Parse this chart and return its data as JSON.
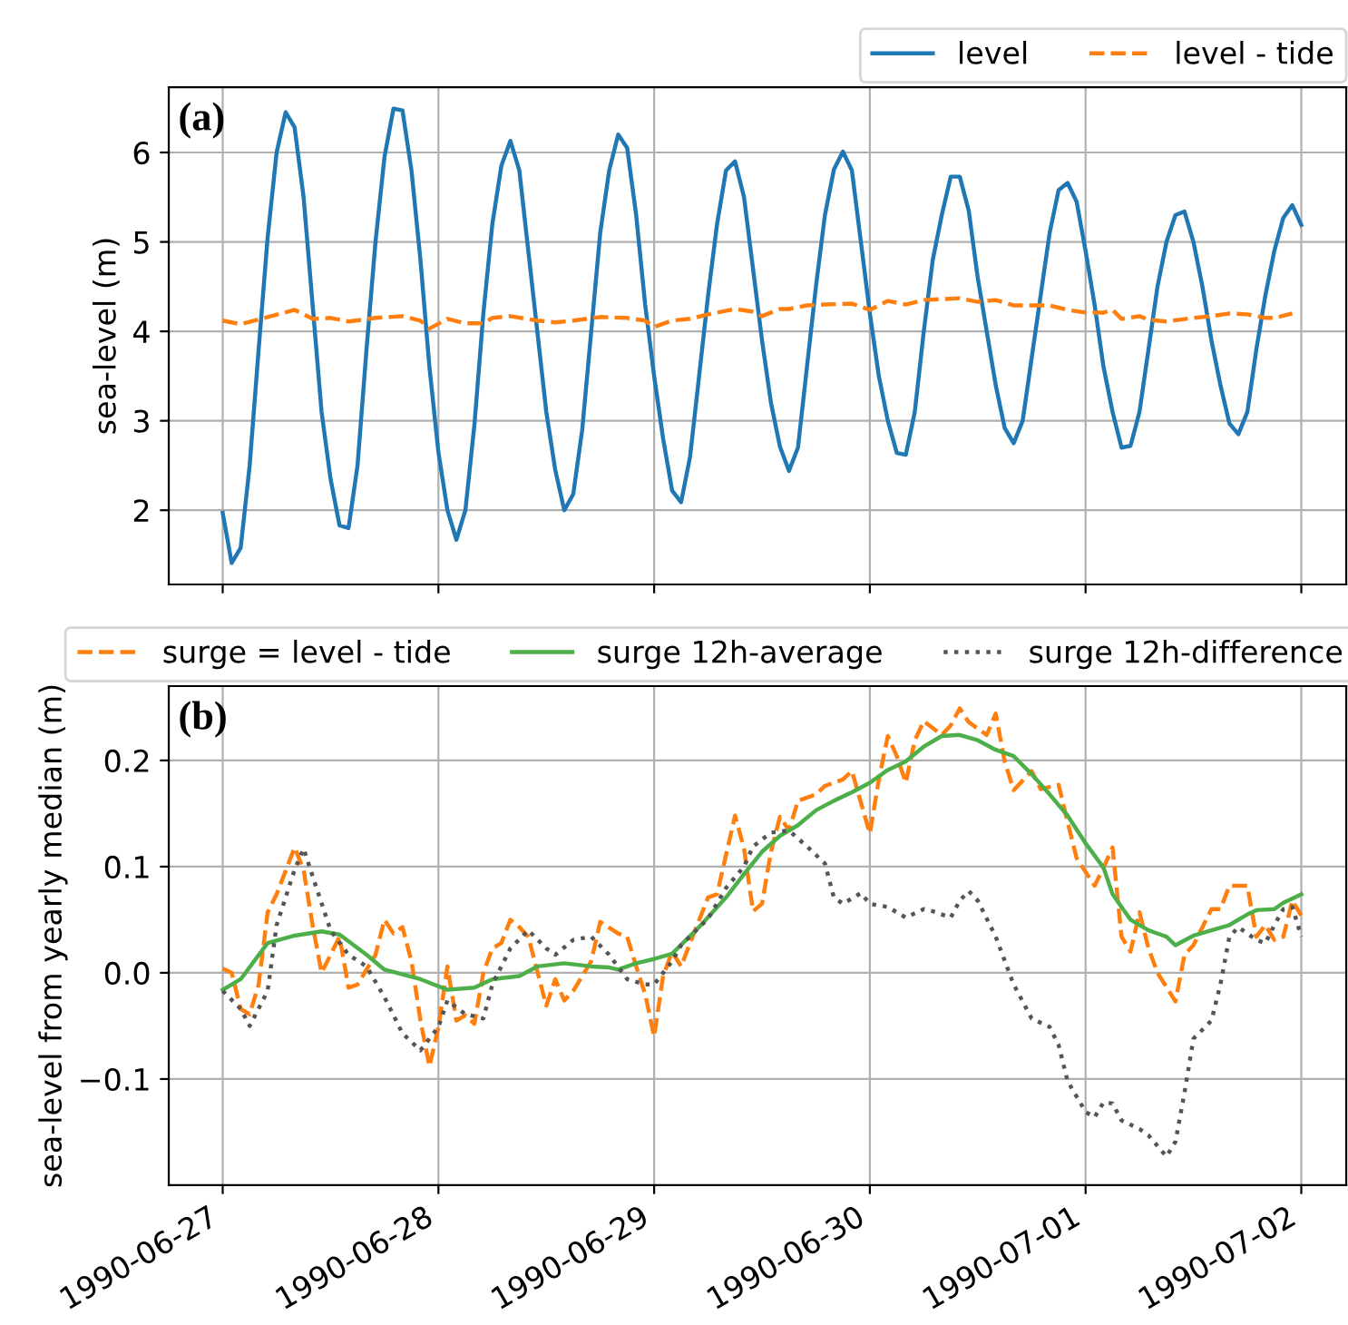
{
  "chart_data": [
    {
      "type": "line",
      "ylabel": "sea-level (m)",
      "annotations": [
        "(a)"
      ],
      "grid": true,
      "legend": "top right",
      "tick_labels": "y",
      "xlim": [
        "1990-06-26T18:00",
        "1990-07-02T05:00"
      ],
      "xticks": [
        "1990-06-27",
        "1990-06-28",
        "1990-06-29",
        "1990-06-30",
        "1990-07-01",
        "1990-07-02"
      ],
      "ylim": [
        1.17,
        6.73
      ],
      "yticks": [
        2,
        3,
        4,
        5,
        6
      ],
      "series": [
        {
          "name": "level",
          "color": "#1f77b4",
          "line_style": "solid",
          "x": [
            "1990-06-27T00:00",
            "1990-06-27T01:00",
            "1990-06-27T02:00",
            "1990-06-27T03:00",
            "1990-06-27T04:00",
            "1990-06-27T05:00",
            "1990-06-27T06:00",
            "1990-06-27T07:00",
            "1990-06-27T08:00",
            "1990-06-27T09:00",
            "1990-06-27T10:00",
            "1990-06-27T11:00",
            "1990-06-27T12:00",
            "1990-06-27T13:00",
            "1990-06-27T14:00",
            "1990-06-27T15:00",
            "1990-06-27T16:00",
            "1990-06-27T17:00",
            "1990-06-27T18:00",
            "1990-06-27T19:00",
            "1990-06-27T20:00",
            "1990-06-27T21:00",
            "1990-06-27T22:00",
            "1990-06-27T23:00",
            "1990-06-28T00:00",
            "1990-06-28T01:00",
            "1990-06-28T02:00",
            "1990-06-28T03:00",
            "1990-06-28T04:00",
            "1990-06-28T05:00",
            "1990-06-28T06:00",
            "1990-06-28T07:00",
            "1990-06-28T08:00",
            "1990-06-28T09:00",
            "1990-06-28T10:00",
            "1990-06-28T11:00",
            "1990-06-28T12:00",
            "1990-06-28T13:00",
            "1990-06-28T14:00",
            "1990-06-28T15:00",
            "1990-06-28T16:00",
            "1990-06-28T17:00",
            "1990-06-28T18:00",
            "1990-06-28T19:00",
            "1990-06-28T20:00",
            "1990-06-28T21:00",
            "1990-06-28T22:00",
            "1990-06-28T23:00",
            "1990-06-29T00:00",
            "1990-06-29T01:00",
            "1990-06-29T02:00",
            "1990-06-29T03:00",
            "1990-06-29T04:00",
            "1990-06-29T05:00",
            "1990-06-29T06:00",
            "1990-06-29T07:00",
            "1990-06-29T08:00",
            "1990-06-29T09:00",
            "1990-06-29T10:00",
            "1990-06-29T11:00",
            "1990-06-29T12:00",
            "1990-06-29T13:00",
            "1990-06-29T14:00",
            "1990-06-29T15:00",
            "1990-06-29T16:00",
            "1990-06-29T17:00",
            "1990-06-29T18:00",
            "1990-06-29T19:00",
            "1990-06-29T20:00",
            "1990-06-29T21:00",
            "1990-06-29T22:00",
            "1990-06-29T23:00",
            "1990-06-30T00:00",
            "1990-06-30T01:00",
            "1990-06-30T02:00",
            "1990-06-30T03:00",
            "1990-06-30T04:00",
            "1990-06-30T05:00",
            "1990-06-30T06:00",
            "1990-06-30T07:00",
            "1990-06-30T08:00",
            "1990-06-30T09:00",
            "1990-06-30T10:00",
            "1990-06-30T11:00",
            "1990-06-30T12:00",
            "1990-06-30T13:00",
            "1990-06-30T14:00",
            "1990-06-30T15:00",
            "1990-06-30T16:00",
            "1990-06-30T17:00",
            "1990-06-30T18:00",
            "1990-06-30T19:00",
            "1990-06-30T20:00",
            "1990-06-30T21:00",
            "1990-06-30T22:00",
            "1990-06-30T23:00",
            "1990-07-01T00:00",
            "1990-07-01T01:00",
            "1990-07-01T02:00",
            "1990-07-01T03:00",
            "1990-07-01T04:00",
            "1990-07-01T05:00",
            "1990-07-01T06:00",
            "1990-07-01T07:00",
            "1990-07-01T08:00",
            "1990-07-01T09:00",
            "1990-07-01T10:00",
            "1990-07-01T11:00",
            "1990-07-01T12:00",
            "1990-07-01T13:00",
            "1990-07-01T14:00",
            "1990-07-01T15:00",
            "1990-07-01T16:00",
            "1990-07-01T17:00",
            "1990-07-01T18:00",
            "1990-07-01T19:00",
            "1990-07-01T20:00",
            "1990-07-01T21:00",
            "1990-07-01T22:00",
            "1990-07-01T23:00",
            "1990-07-02T00:00"
          ],
          "values": [
            1.97,
            1.41,
            1.58,
            2.5,
            3.8,
            5.05,
            6.0,
            6.45,
            6.28,
            5.5,
            4.3,
            3.1,
            2.35,
            1.83,
            1.8,
            2.5,
            3.8,
            5.0,
            5.95,
            6.49,
            6.47,
            5.8,
            4.8,
            3.6,
            2.65,
            2.0,
            1.67,
            2.0,
            2.95,
            4.2,
            5.2,
            5.85,
            6.13,
            5.8,
            4.9,
            4.0,
            3.1,
            2.45,
            2.0,
            2.18,
            2.9,
            4.0,
            5.1,
            5.8,
            6.2,
            6.05,
            5.3,
            4.3,
            3.5,
            2.8,
            2.22,
            2.09,
            2.6,
            3.5,
            4.4,
            5.2,
            5.8,
            5.9,
            5.5,
            4.7,
            3.9,
            3.2,
            2.71,
            2.44,
            2.7,
            3.6,
            4.5,
            5.3,
            5.81,
            6.01,
            5.8,
            5.0,
            4.2,
            3.5,
            3.0,
            2.64,
            2.62,
            3.1,
            4.0,
            4.8,
            5.3,
            5.73,
            5.73,
            5.35,
            4.6,
            4.0,
            3.4,
            2.92,
            2.75,
            3.0,
            3.7,
            4.4,
            5.1,
            5.58,
            5.66,
            5.45,
            4.9,
            4.3,
            3.6,
            3.1,
            2.7,
            2.72,
            3.1,
            3.8,
            4.5,
            5.0,
            5.3,
            5.34,
            5.0,
            4.5,
            3.9,
            3.4,
            2.97,
            2.85,
            3.1,
            3.8,
            4.4,
            4.9,
            5.27,
            5.41,
            5.19
          ]
        },
        {
          "name": "level - tide",
          "color": "#ff7f0e",
          "line_style": "dashed",
          "x": [
            "1990-06-27T00:00",
            "1990-06-27T02:00",
            "1990-06-27T05:00",
            "1990-06-27T08:00",
            "1990-06-27T10:00",
            "1990-06-27T12:00",
            "1990-06-27T14:00",
            "1990-06-27T17:00",
            "1990-06-27T20:00",
            "1990-06-27T22:00",
            "1990-06-27T23:00",
            "1990-06-28T01:00",
            "1990-06-28T03:00",
            "1990-06-28T05:00",
            "1990-06-28T06:00",
            "1990-06-28T08:00",
            "1990-06-28T11:00",
            "1990-06-28T13:00",
            "1990-06-28T15:00",
            "1990-06-28T18:00",
            "1990-06-28T21:00",
            "1990-06-28T23:00",
            "1990-06-29T00:00",
            "1990-06-29T02:00",
            "1990-06-29T04:00",
            "1990-06-29T06:00",
            "1990-06-29T09:00",
            "1990-06-29T11:00",
            "1990-06-29T12:00",
            "1990-06-29T14:00",
            "1990-06-29T15:00",
            "1990-06-29T17:00",
            "1990-06-29T19:00",
            "1990-06-29T22:00",
            "1990-06-30T00:00",
            "1990-06-30T02:00",
            "1990-06-30T04:00",
            "1990-06-30T06:00",
            "1990-06-30T10:00",
            "1990-06-30T12:00",
            "1990-06-30T14:00",
            "1990-06-30T16:00",
            "1990-06-30T18:00",
            "1990-06-30T20:00",
            "1990-06-30T22:00",
            "1990-07-01T00:00",
            "1990-07-01T02:00",
            "1990-07-01T03:00",
            "1990-07-01T04:00",
            "1990-07-01T06:00",
            "1990-07-01T07:00",
            "1990-07-01T09:00",
            "1990-07-01T12:00",
            "1990-07-01T14:00",
            "1990-07-01T16:00",
            "1990-07-01T18:00",
            "1990-07-01T20:00",
            "1990-07-01T21:00",
            "1990-07-01T23:00"
          ],
          "values": [
            4.12,
            4.08,
            4.16,
            4.24,
            4.14,
            4.15,
            4.11,
            4.15,
            4.17,
            4.12,
            4.03,
            4.14,
            4.09,
            4.09,
            4.15,
            4.17,
            4.12,
            4.1,
            4.12,
            4.16,
            4.15,
            4.12,
            4.05,
            4.12,
            4.14,
            4.19,
            4.25,
            4.22,
            4.17,
            4.25,
            4.25,
            4.29,
            4.3,
            4.31,
            4.24,
            4.34,
            4.3,
            4.35,
            4.37,
            4.33,
            4.35,
            4.29,
            4.29,
            4.29,
            4.24,
            4.21,
            4.21,
            4.24,
            4.14,
            4.17,
            4.13,
            4.11,
            4.15,
            4.17,
            4.2,
            4.19,
            4.15,
            4.15,
            4.2
          ]
        }
      ]
    },
    {
      "type": "line",
      "ylabel": "sea-level from yearly median (m)",
      "annotations": [
        "(b)"
      ],
      "grid": true,
      "legend": "top",
      "xlim": [
        "1990-06-26T18:00",
        "1990-07-02T05:00"
      ],
      "xticks": [
        "1990-06-27",
        "1990-06-28",
        "1990-06-29",
        "1990-06-30",
        "1990-07-01",
        "1990-07-02"
      ],
      "ylim": [
        -0.2,
        0.27
      ],
      "yticks": [
        {
          "value": -0.1,
          "label": "−0.1"
        },
        {
          "value": 0,
          "label": "0.0"
        },
        0.1,
        0.2
      ],
      "series": [
        {
          "name": "surge = level - tide",
          "color": "#ff7f0e",
          "line_style": "dashed",
          "x": [
            "1990-06-27T00:00",
            "1990-06-27T01:00",
            "1990-06-27T02:00",
            "1990-06-27T03:00",
            "1990-06-27T04:00",
            "1990-06-27T05:00",
            "1990-06-27T06:00",
            "1990-06-27T08:00",
            "1990-06-27T09:00",
            "1990-06-27T10:00",
            "1990-06-27T11:00",
            "1990-06-27T12:00",
            "1990-06-27T13:00",
            "1990-06-27T14:00",
            "1990-06-27T15:00",
            "1990-06-27T17:00",
            "1990-06-27T18:00",
            "1990-06-27T19:00",
            "1990-06-27T20:00",
            "1990-06-27T21:00",
            "1990-06-27T22:00",
            "1990-06-27T23:00",
            "1990-06-28T00:00",
            "1990-06-28T01:00",
            "1990-06-28T02:00",
            "1990-06-28T03:00",
            "1990-06-28T04:00",
            "1990-06-28T05:00",
            "1990-06-28T06:00",
            "1990-06-28T07:00",
            "1990-06-28T08:00",
            "1990-06-28T09:00",
            "1990-06-28T10:00",
            "1990-06-28T12:00",
            "1990-06-28T13:00",
            "1990-06-28T14:00",
            "1990-06-28T15:00",
            "1990-06-28T17:00",
            "1990-06-28T18:00",
            "1990-06-28T20:00",
            "1990-06-28T21:00",
            "1990-06-28T22:00",
            "1990-06-28T23:00",
            "1990-06-29T00:00",
            "1990-06-29T01:00",
            "1990-06-29T02:00",
            "1990-06-29T03:00",
            "1990-06-29T04:00",
            "1990-06-29T06:00",
            "1990-06-29T07:00",
            "1990-06-29T09:00",
            "1990-06-29T10:00",
            "1990-06-29T11:00",
            "1990-06-29T12:00",
            "1990-06-29T13:00",
            "1990-06-29T14:00",
            "1990-06-29T15:00",
            "1990-06-29T16:00",
            "1990-06-29T18:00",
            "1990-06-29T19:00",
            "1990-06-29T21:00",
            "1990-06-29T22:00",
            "1990-06-30T00:00",
            "1990-06-30T01:00",
            "1990-06-30T02:00",
            "1990-06-30T03:00",
            "1990-06-30T04:00",
            "1990-06-30T05:00",
            "1990-06-30T06:00",
            "1990-06-30T08:00",
            "1990-06-30T09:00",
            "1990-06-30T10:00",
            "1990-06-30T11:00",
            "1990-06-30T13:00",
            "1990-06-30T14:00",
            "1990-06-30T15:00",
            "1990-06-30T16:00",
            "1990-06-30T18:00",
            "1990-06-30T19:00",
            "1990-06-30T21:00",
            "1990-06-30T22:00",
            "1990-06-30T23:00",
            "1990-07-01T01:00",
            "1990-07-01T02:00",
            "1990-07-01T03:00",
            "1990-07-01T04:00",
            "1990-07-01T05:00",
            "1990-07-01T06:00",
            "1990-07-01T07:00",
            "1990-07-01T08:00",
            "1990-07-01T10:00",
            "1990-07-01T11:00",
            "1990-07-01T12:00",
            "1990-07-01T14:00",
            "1990-07-01T15:00",
            "1990-07-01T16:00",
            "1990-07-01T18:00",
            "1990-07-01T19:00",
            "1990-07-01T20:00",
            "1990-07-01T21:00",
            "1990-07-01T22:00",
            "1990-07-01T23:00",
            "1990-07-02T00:00"
          ],
          "values": [
            0.004,
            0.0,
            -0.034,
            -0.039,
            -0.011,
            0.057,
            0.074,
            0.118,
            0.097,
            0.045,
            0.0,
            0.017,
            0.034,
            -0.014,
            -0.011,
            0.017,
            0.05,
            0.037,
            0.043,
            0.011,
            -0.045,
            -0.088,
            -0.051,
            0.006,
            -0.045,
            -0.04,
            -0.048,
            0.0,
            0.023,
            0.028,
            0.05,
            0.043,
            0.034,
            -0.031,
            -0.006,
            -0.026,
            -0.017,
            0.011,
            0.048,
            0.037,
            0.034,
            0.006,
            -0.02,
            -0.06,
            -0.003,
            0.02,
            0.006,
            0.028,
            0.071,
            0.074,
            0.148,
            0.117,
            0.058,
            0.065,
            0.114,
            0.147,
            0.134,
            0.162,
            0.168,
            0.176,
            0.182,
            0.19,
            0.131,
            0.182,
            0.223,
            0.204,
            0.179,
            0.219,
            0.237,
            0.224,
            0.233,
            0.249,
            0.236,
            0.224,
            0.244,
            0.199,
            0.172,
            0.19,
            0.173,
            0.177,
            0.142,
            0.108,
            0.082,
            0.099,
            0.118,
            0.034,
            0.02,
            0.057,
            0.023,
            0.0,
            -0.027,
            0.017,
            0.026,
            0.06,
            0.06,
            0.082,
            0.082,
            0.034,
            0.045,
            0.031,
            0.034,
            0.068,
            0.054
          ]
        },
        {
          "name": "surge 12h-average",
          "color": "#4daf4a",
          "line_style": "solid",
          "x": [
            "1990-06-27T00:00",
            "1990-06-27T02:00",
            "1990-06-27T05:00",
            "1990-06-27T08:00",
            "1990-06-27T11:00",
            "1990-06-27T13:00",
            "1990-06-27T16:00",
            "1990-06-27T18:00",
            "1990-06-27T22:00",
            "1990-06-28T01:00",
            "1990-06-28T04:00",
            "1990-06-28T06:00",
            "1990-06-28T09:00",
            "1990-06-28T11:00",
            "1990-06-28T14:00",
            "1990-06-28T17:00",
            "1990-06-28T19:00",
            "1990-06-28T20:00",
            "1990-06-28T22:00",
            "1990-06-29T00:00",
            "1990-06-29T02:00",
            "1990-06-29T05:00",
            "1990-06-29T08:00",
            "1990-06-29T10:00",
            "1990-06-29T12:00",
            "1990-06-29T14:00",
            "1990-06-29T16:00",
            "1990-06-29T18:00",
            "1990-06-29T20:00",
            "1990-06-29T22:00",
            "1990-06-30T00:00",
            "1990-06-30T02:00",
            "1990-06-30T04:00",
            "1990-06-30T06:00",
            "1990-06-30T08:00",
            "1990-06-30T10:00",
            "1990-06-30T12:00",
            "1990-06-30T14:00",
            "1990-06-30T16:00",
            "1990-06-30T18:00",
            "1990-06-30T20:00",
            "1990-06-30T22:00",
            "1990-07-01T00:00",
            "1990-07-01T02:00",
            "1990-07-01T03:00",
            "1990-07-01T05:00",
            "1990-07-01T07:00",
            "1990-07-01T09:00",
            "1990-07-01T10:00",
            "1990-07-01T12:00",
            "1990-07-01T14:00",
            "1990-07-01T16:00",
            "1990-07-01T18:00",
            "1990-07-01T19:00",
            "1990-07-01T21:00",
            "1990-07-01T22:00",
            "1990-07-02T00:00"
          ],
          "values": [
            -0.016,
            -0.006,
            0.028,
            0.035,
            0.039,
            0.036,
            0.017,
            0.003,
            -0.006,
            -0.016,
            -0.014,
            -0.006,
            -0.003,
            0.006,
            0.009,
            0.006,
            0.005,
            0.003,
            0.009,
            0.013,
            0.018,
            0.043,
            0.071,
            0.093,
            0.114,
            0.129,
            0.139,
            0.153,
            0.162,
            0.17,
            0.179,
            0.191,
            0.199,
            0.213,
            0.223,
            0.224,
            0.219,
            0.21,
            0.204,
            0.187,
            0.168,
            0.148,
            0.122,
            0.099,
            0.074,
            0.05,
            0.04,
            0.034,
            0.026,
            0.035,
            0.04,
            0.045,
            0.055,
            0.059,
            0.06,
            0.066,
            0.074
          ]
        },
        {
          "name": "surge 12h-difference",
          "color": "#555555",
          "line_style": "dotted",
          "x": [
            "1990-06-27T00:00",
            "1990-06-27T02:00",
            "1990-06-27T03:00",
            "1990-06-27T05:00",
            "1990-06-27T06:00",
            "1990-06-27T08:00",
            "1990-06-27T09:00",
            "1990-06-27T10:00",
            "1990-06-27T12:00",
            "1990-06-27T14:00",
            "1990-06-27T16:00",
            "1990-06-27T18:00",
            "1990-06-27T20:00",
            "1990-06-27T22:00",
            "1990-06-28T00:00",
            "1990-06-28T01:00",
            "1990-06-28T03:00",
            "1990-06-28T05:00",
            "1990-06-28T06:00",
            "1990-06-28T08:00",
            "1990-06-28T10:00",
            "1990-06-28T12:00",
            "1990-06-28T13:00",
            "1990-06-28T15:00",
            "1990-06-28T17:00",
            "1990-06-28T19:00",
            "1990-06-28T21:00",
            "1990-06-28T23:00",
            "1990-06-29T00:00",
            "1990-06-29T02:00",
            "1990-06-29T03:00",
            "1990-06-29T06:00",
            "1990-06-29T08:00",
            "1990-06-29T10:00",
            "1990-06-29T11:00",
            "1990-06-29T13:00",
            "1990-06-29T15:00",
            "1990-06-29T17:00",
            "1990-06-29T19:00",
            "1990-06-29T20:00",
            "1990-06-29T21:00",
            "1990-06-29T23:00",
            "1990-06-30T00:00",
            "1990-06-30T02:00",
            "1990-06-30T04:00",
            "1990-06-30T06:00",
            "1990-06-30T07:00",
            "1990-06-30T09:00",
            "1990-06-30T10:00",
            "1990-06-30T11:00",
            "1990-06-30T12:00",
            "1990-06-30T14:00",
            "1990-06-30T16:00",
            "1990-06-30T18:00",
            "1990-06-30T20:00",
            "1990-06-30T21:00",
            "1990-06-30T22:00",
            "1990-07-01T00:00",
            "1990-07-01T01:00",
            "1990-07-01T02:00",
            "1990-07-01T03:00",
            "1990-07-01T04:00",
            "1990-07-01T06:00",
            "1990-07-01T07:00",
            "1990-07-01T09:00",
            "1990-07-01T10:00",
            "1990-07-01T11:00",
            "1990-07-01T12:00",
            "1990-07-01T14:00",
            "1990-07-01T15:00",
            "1990-07-01T16:00",
            "1990-07-01T17:00",
            "1990-07-01T19:00",
            "1990-07-01T20:00",
            "1990-07-01T21:00",
            "1990-07-01T22:00",
            "1990-07-01T23:00",
            "1990-07-02T00:00"
          ],
          "values": [
            -0.017,
            -0.034,
            -0.05,
            -0.017,
            0.045,
            0.097,
            0.117,
            0.091,
            0.04,
            0.017,
            0.006,
            -0.023,
            -0.057,
            -0.073,
            -0.051,
            -0.026,
            -0.039,
            -0.043,
            -0.011,
            0.023,
            0.04,
            0.023,
            0.017,
            0.031,
            0.034,
            0.017,
            -0.006,
            -0.011,
            -0.011,
            0.011,
            0.026,
            0.051,
            0.08,
            0.1,
            0.119,
            0.132,
            0.134,
            0.119,
            0.103,
            0.071,
            0.065,
            0.075,
            0.065,
            0.062,
            0.052,
            0.06,
            0.058,
            0.052,
            0.068,
            0.077,
            0.068,
            0.034,
            -0.011,
            -0.043,
            -0.051,
            -0.068,
            -0.102,
            -0.131,
            -0.136,
            -0.122,
            -0.123,
            -0.139,
            -0.147,
            -0.153,
            -0.173,
            -0.159,
            -0.113,
            -0.062,
            -0.045,
            -0.011,
            0.034,
            0.043,
            0.031,
            0.028,
            0.045,
            0.06,
            0.062,
            0.034
          ]
        }
      ]
    }
  ]
}
